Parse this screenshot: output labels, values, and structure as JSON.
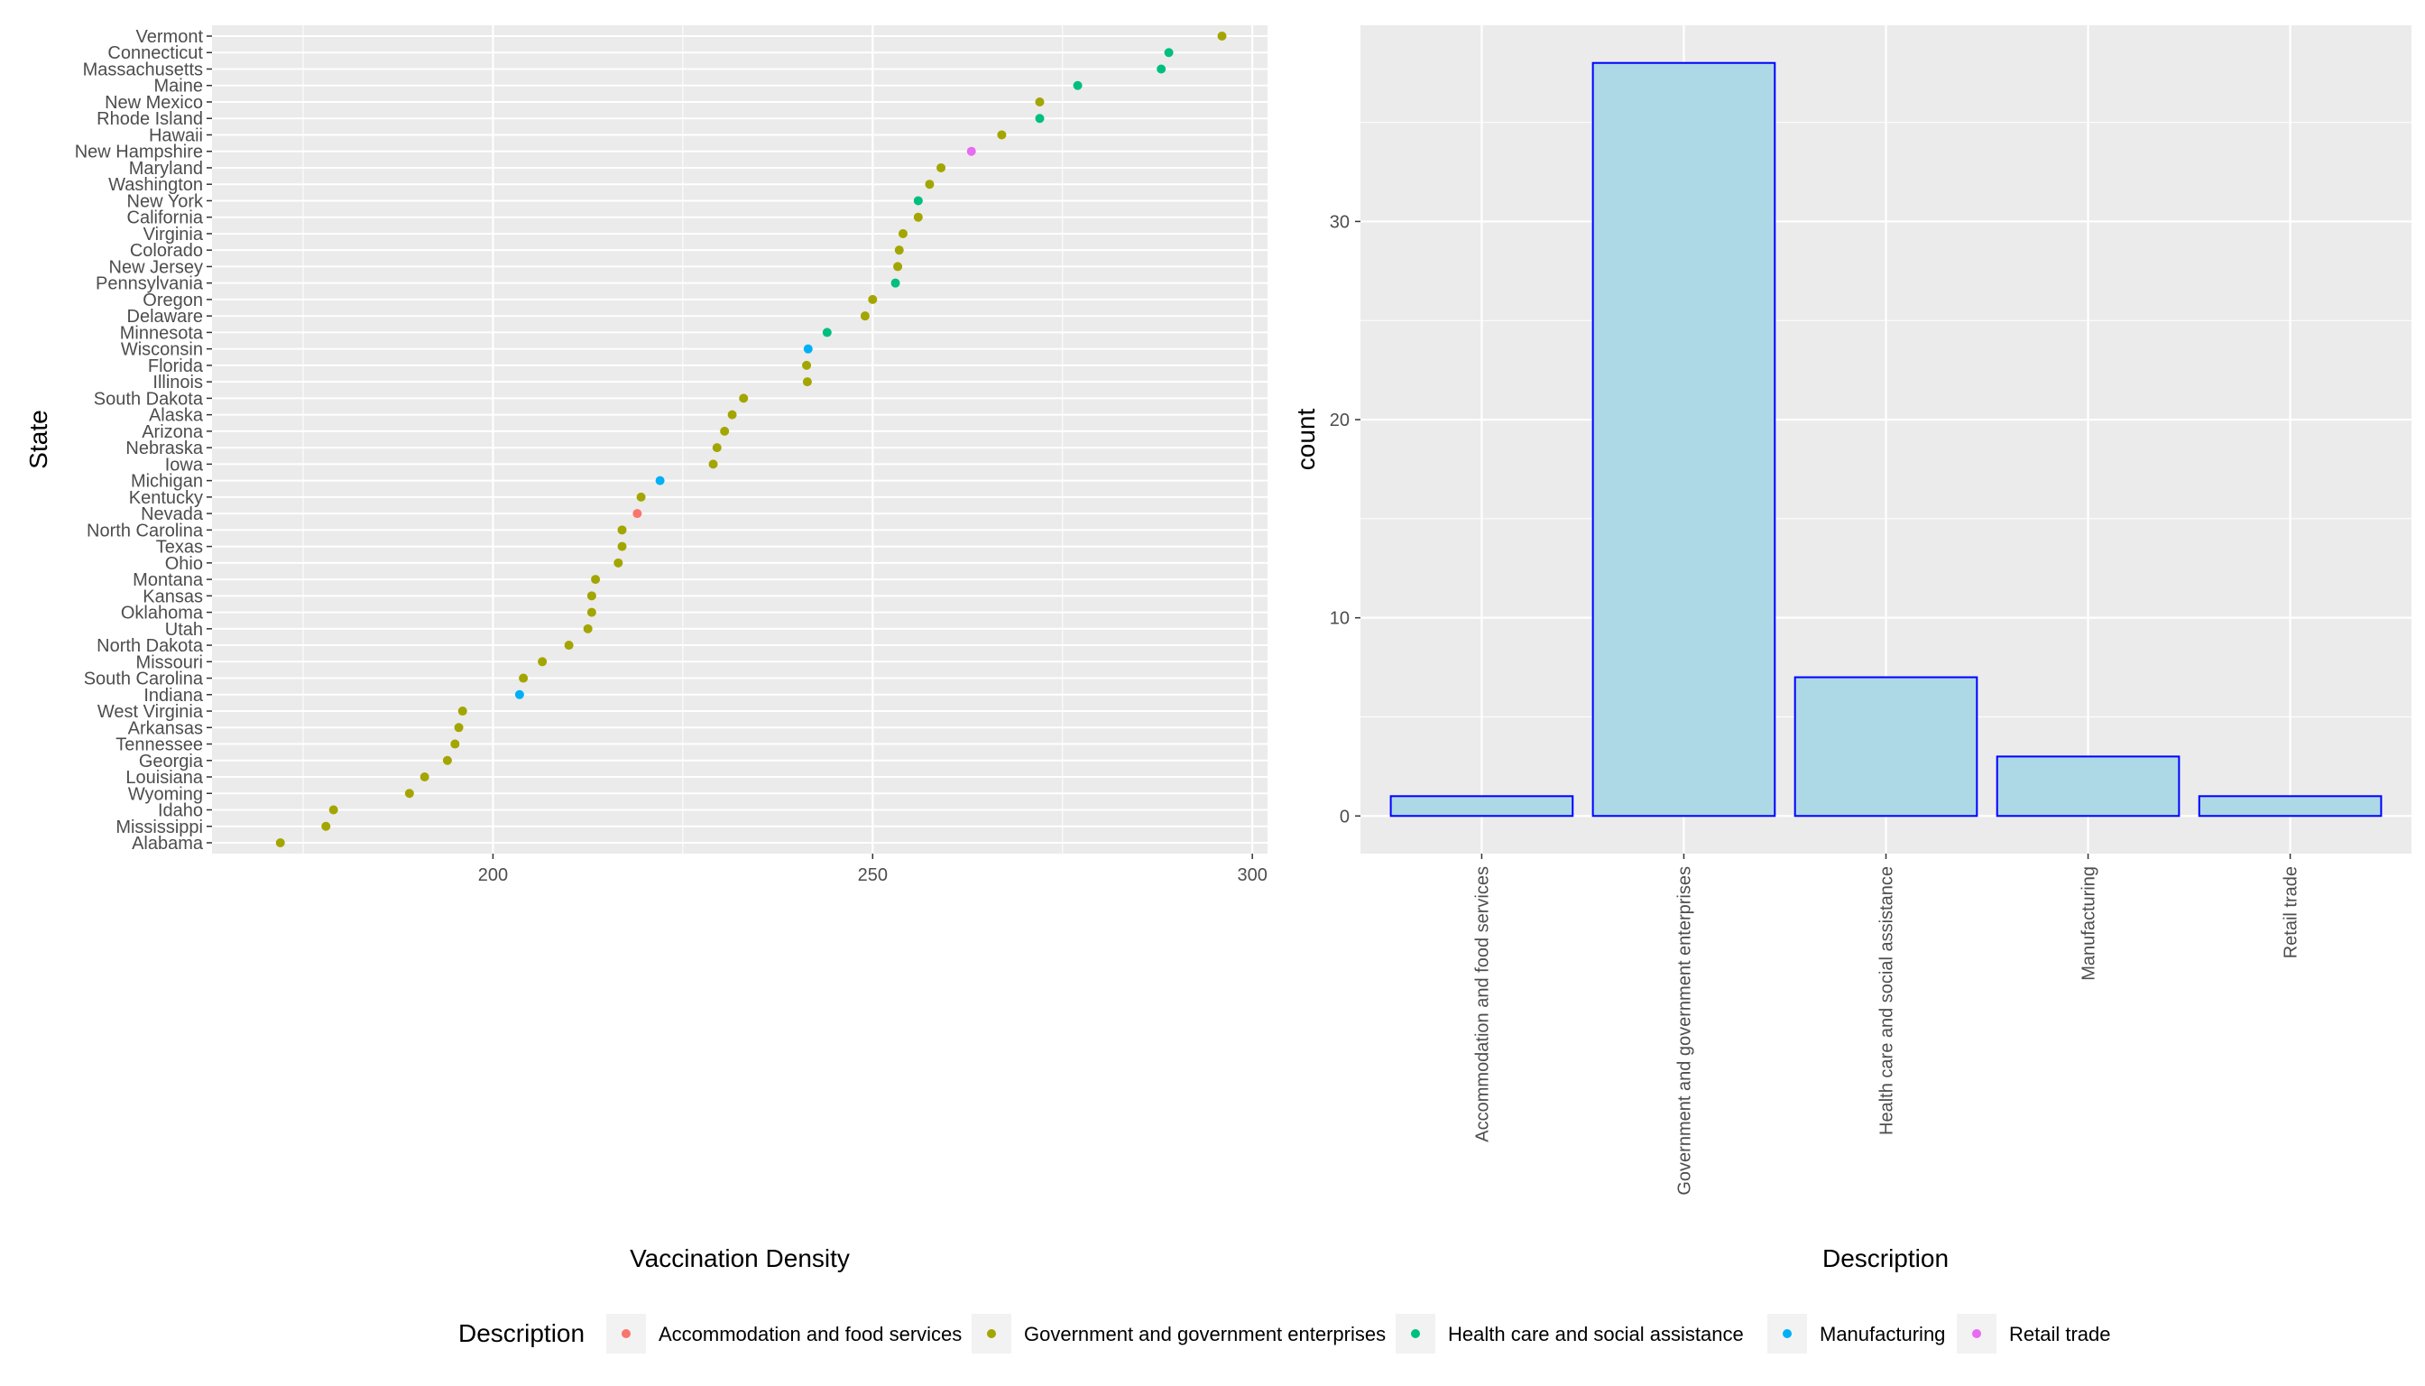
{
  "chart_data": [
    {
      "type": "scatter",
      "xlabel": "Vaccination Density",
      "ylabel": "State",
      "xlim": [
        163,
        302
      ],
      "x_ticks": [
        200,
        250,
        300
      ],
      "grid": true,
      "color_by": "Description",
      "points": [
        {
          "state": "Vermont",
          "value": 296,
          "category": "Government and government enterprises"
        },
        {
          "state": "Connecticut",
          "value": 289,
          "category": "Health care and social assistance"
        },
        {
          "state": "Massachusetts",
          "value": 288,
          "category": "Health care and social assistance"
        },
        {
          "state": "Maine",
          "value": 277,
          "category": "Health care and social assistance"
        },
        {
          "state": "New Mexico",
          "value": 272,
          "category": "Government and government enterprises"
        },
        {
          "state": "Rhode Island",
          "value": 272,
          "category": "Health care and social assistance"
        },
        {
          "state": "Hawaii",
          "value": 267,
          "category": "Government and government enterprises"
        },
        {
          "state": "New Hampshire",
          "value": 263,
          "category": "Retail trade"
        },
        {
          "state": "Maryland",
          "value": 259,
          "category": "Government and government enterprises"
        },
        {
          "state": "Washington",
          "value": 257.5,
          "category": "Government and government enterprises"
        },
        {
          "state": "New York",
          "value": 256,
          "category": "Health care and social assistance"
        },
        {
          "state": "California",
          "value": 256,
          "category": "Government and government enterprises"
        },
        {
          "state": "Virginia",
          "value": 254,
          "category": "Government and government enterprises"
        },
        {
          "state": "Colorado",
          "value": 253.5,
          "category": "Government and government enterprises"
        },
        {
          "state": "New Jersey",
          "value": 253.3,
          "category": "Government and government enterprises"
        },
        {
          "state": "Pennsylvania",
          "value": 253,
          "category": "Health care and social assistance"
        },
        {
          "state": "Oregon",
          "value": 250,
          "category": "Government and government enterprises"
        },
        {
          "state": "Delaware",
          "value": 249,
          "category": "Government and government enterprises"
        },
        {
          "state": "Minnesota",
          "value": 244,
          "category": "Health care and social assistance"
        },
        {
          "state": "Wisconsin",
          "value": 241.5,
          "category": "Manufacturing"
        },
        {
          "state": "Florida",
          "value": 241.3,
          "category": "Government and government enterprises"
        },
        {
          "state": "Illinois",
          "value": 241.4,
          "category": "Government and government enterprises"
        },
        {
          "state": "South Dakota",
          "value": 233,
          "category": "Government and government enterprises"
        },
        {
          "state": "Alaska",
          "value": 231.5,
          "category": "Government and government enterprises"
        },
        {
          "state": "Arizona",
          "value": 230.5,
          "category": "Government and government enterprises"
        },
        {
          "state": "Nebraska",
          "value": 229.5,
          "category": "Government and government enterprises"
        },
        {
          "state": "Iowa",
          "value": 229,
          "category": "Government and government enterprises"
        },
        {
          "state": "Michigan",
          "value": 222,
          "category": "Manufacturing"
        },
        {
          "state": "Kentucky",
          "value": 219.5,
          "category": "Government and government enterprises"
        },
        {
          "state": "Nevada",
          "value": 219,
          "category": "Accommodation and food services"
        },
        {
          "state": "North Carolina",
          "value": 217,
          "category": "Government and government enterprises"
        },
        {
          "state": "Texas",
          "value": 217,
          "category": "Government and government enterprises"
        },
        {
          "state": "Ohio",
          "value": 216.5,
          "category": "Government and government enterprises"
        },
        {
          "state": "Montana",
          "value": 213.5,
          "category": "Government and government enterprises"
        },
        {
          "state": "Kansas",
          "value": 213,
          "category": "Government and government enterprises"
        },
        {
          "state": "Oklahoma",
          "value": 213,
          "category": "Government and government enterprises"
        },
        {
          "state": "Utah",
          "value": 212.5,
          "category": "Government and government enterprises"
        },
        {
          "state": "North Dakota",
          "value": 210,
          "category": "Government and government enterprises"
        },
        {
          "state": "Missouri",
          "value": 206.5,
          "category": "Government and government enterprises"
        },
        {
          "state": "South Carolina",
          "value": 204,
          "category": "Government and government enterprises"
        },
        {
          "state": "Indiana",
          "value": 203.5,
          "category": "Manufacturing"
        },
        {
          "state": "West Virginia",
          "value": 196,
          "category": "Government and government enterprises"
        },
        {
          "state": "Arkansas",
          "value": 195.5,
          "category": "Government and government enterprises"
        },
        {
          "state": "Tennessee",
          "value": 195,
          "category": "Government and government enterprises"
        },
        {
          "state": "Georgia",
          "value": 194,
          "category": "Government and government enterprises"
        },
        {
          "state": "Louisiana",
          "value": 191,
          "category": "Government and government enterprises"
        },
        {
          "state": "Wyoming",
          "value": 189,
          "category": "Government and government enterprises"
        },
        {
          "state": "Idaho",
          "value": 179,
          "category": "Government and government enterprises"
        },
        {
          "state": "Mississippi",
          "value": 178,
          "category": "Government and government enterprises"
        },
        {
          "state": "Alabama",
          "value": 172,
          "category": "Government and government enterprises"
        }
      ]
    },
    {
      "type": "bar",
      "xlabel": "Description",
      "ylabel": "count",
      "ylim": [
        -1.9,
        39.9
      ],
      "y_ticks": [
        0,
        10,
        20,
        30
      ],
      "grid": true,
      "bar_fill": "#add8e6",
      "bar_outline": "#0000ff",
      "categories": [
        "Accommodation and food services",
        "Government and government enterprises",
        "Health care and social assistance",
        "Manufacturing",
        "Retail trade"
      ],
      "values": [
        1,
        38,
        7,
        3,
        1
      ]
    }
  ],
  "legend": {
    "title": "Description",
    "position": "bottom",
    "items": [
      {
        "label": "Accommodation and food services",
        "color": "#F8766D"
      },
      {
        "label": "Government and government enterprises",
        "color": "#A3A500"
      },
      {
        "label": "Health care and social assistance",
        "color": "#00BF7D"
      },
      {
        "label": "Manufacturing",
        "color": "#00B0F6"
      },
      {
        "label": "Retail trade",
        "color": "#E76BF3"
      }
    ]
  },
  "colors": {
    "panel_background": "#ebebeb",
    "grid_major": "#ffffff",
    "tick_text": "#4d4d4d"
  }
}
